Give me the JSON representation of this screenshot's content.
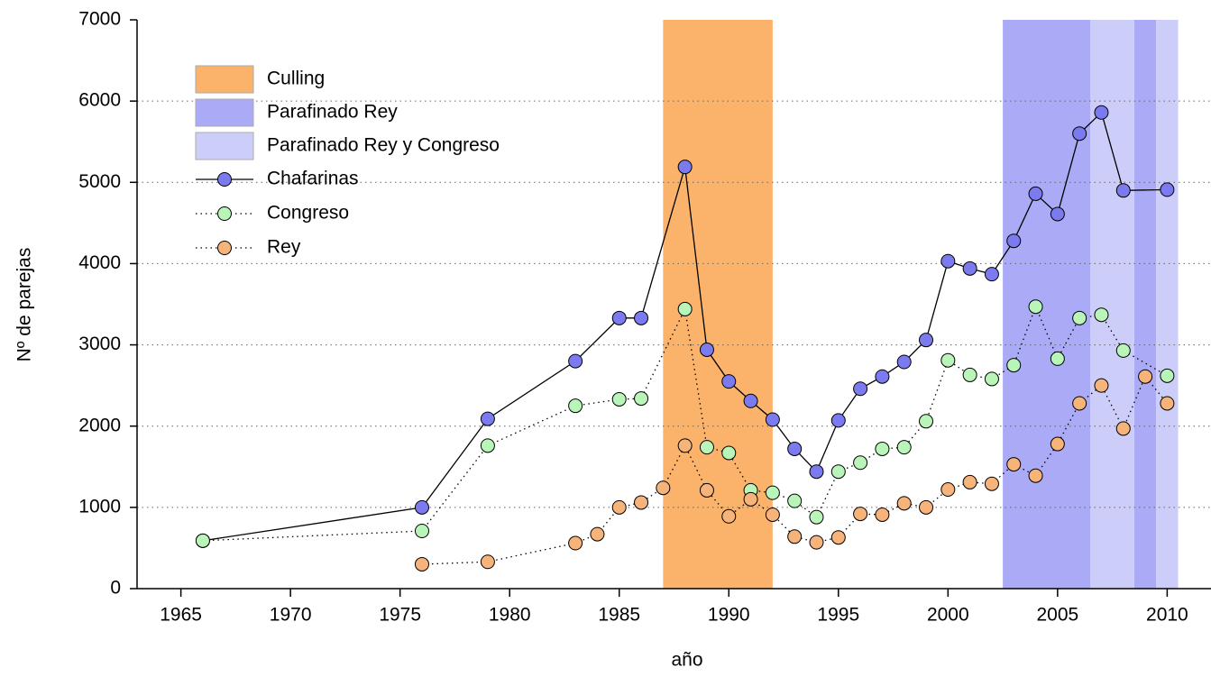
{
  "chart_data": {
    "type": "line",
    "xlabel": "año",
    "ylabel": "Nº de parejas",
    "xlim": [
      1963,
      2012
    ],
    "ylim": [
      0,
      7000
    ],
    "xticks": [
      1965,
      1970,
      1975,
      1980,
      1985,
      1990,
      1995,
      2000,
      2005,
      2010
    ],
    "yticks": [
      0,
      1000,
      2000,
      3000,
      4000,
      5000,
      6000,
      7000
    ],
    "grid": true,
    "legend": "upper left",
    "bands": [
      {
        "name": "Culling",
        "color": "#fbb36b",
        "ranges": [
          [
            1987,
            1992
          ]
        ]
      },
      {
        "name": "Parafinado Rey",
        "color": "#aaaaf6",
        "ranges": [
          [
            2002.5,
            2006.5
          ],
          [
            2008.5,
            2009.5
          ]
        ]
      },
      {
        "name": "Parafinado Rey y Congreso",
        "color": "#cdcdfa",
        "ranges": [
          [
            2006.5,
            2008.5
          ],
          [
            2009.5,
            2010.5
          ]
        ]
      }
    ],
    "series": [
      {
        "name": "Chafarinas",
        "color": "#7b7bef",
        "linestyle": "solid",
        "x": [
          1966,
          1976,
          1979,
          1983,
          1985,
          1986,
          1988,
          1989,
          1990,
          1991,
          1992,
          1993,
          1994,
          1995,
          1996,
          1997,
          1998,
          1999,
          2000,
          2001,
          2002,
          2003,
          2004,
          2005,
          2006,
          2007,
          2008,
          2010
        ],
        "values": [
          590,
          1000,
          2090,
          2800,
          3330,
          3330,
          5190,
          2940,
          2550,
          2310,
          2080,
          1720,
          1440,
          2070,
          2460,
          2610,
          2790,
          3060,
          4030,
          3940,
          3870,
          4280,
          4860,
          4610,
          5600,
          5860,
          4900,
          4910
        ]
      },
      {
        "name": "Congreso",
        "color": "#b9f5b9",
        "linestyle": "dotted",
        "x": [
          1966,
          1976,
          1979,
          1983,
          1985,
          1986,
          1988,
          1989,
          1990,
          1991,
          1992,
          1993,
          1994,
          1995,
          1996,
          1997,
          1998,
          1999,
          2000,
          2001,
          2002,
          2003,
          2004,
          2005,
          2006,
          2007,
          2008,
          2010
        ],
        "values": [
          590,
          710,
          1760,
          2250,
          2330,
          2340,
          3440,
          1740,
          1670,
          1210,
          1180,
          1080,
          880,
          1440,
          1550,
          1720,
          1740,
          2060,
          2810,
          2630,
          2580,
          2750,
          3470,
          2830,
          3330,
          3370,
          2930,
          2620
        ]
      },
      {
        "name": "Rey",
        "color": "#f6b37a",
        "linestyle": "dotted",
        "x": [
          1976,
          1979,
          1983,
          1984,
          1985,
          1986,
          1987,
          1988,
          1989,
          1990,
          1991,
          1992,
          1993,
          1994,
          1995,
          1996,
          1997,
          1998,
          1999,
          2000,
          2001,
          2002,
          2003,
          2004,
          2005,
          2006,
          2007,
          2008,
          2009,
          2010
        ],
        "values": [
          300,
          330,
          560,
          670,
          1000,
          1060,
          1240,
          1760,
          1210,
          890,
          1100,
          910,
          640,
          570,
          630,
          920,
          910,
          1050,
          1000,
          1220,
          1310,
          1290,
          1530,
          1390,
          1780,
          2280,
          2500,
          1970,
          2610,
          2280
        ]
      }
    ]
  }
}
